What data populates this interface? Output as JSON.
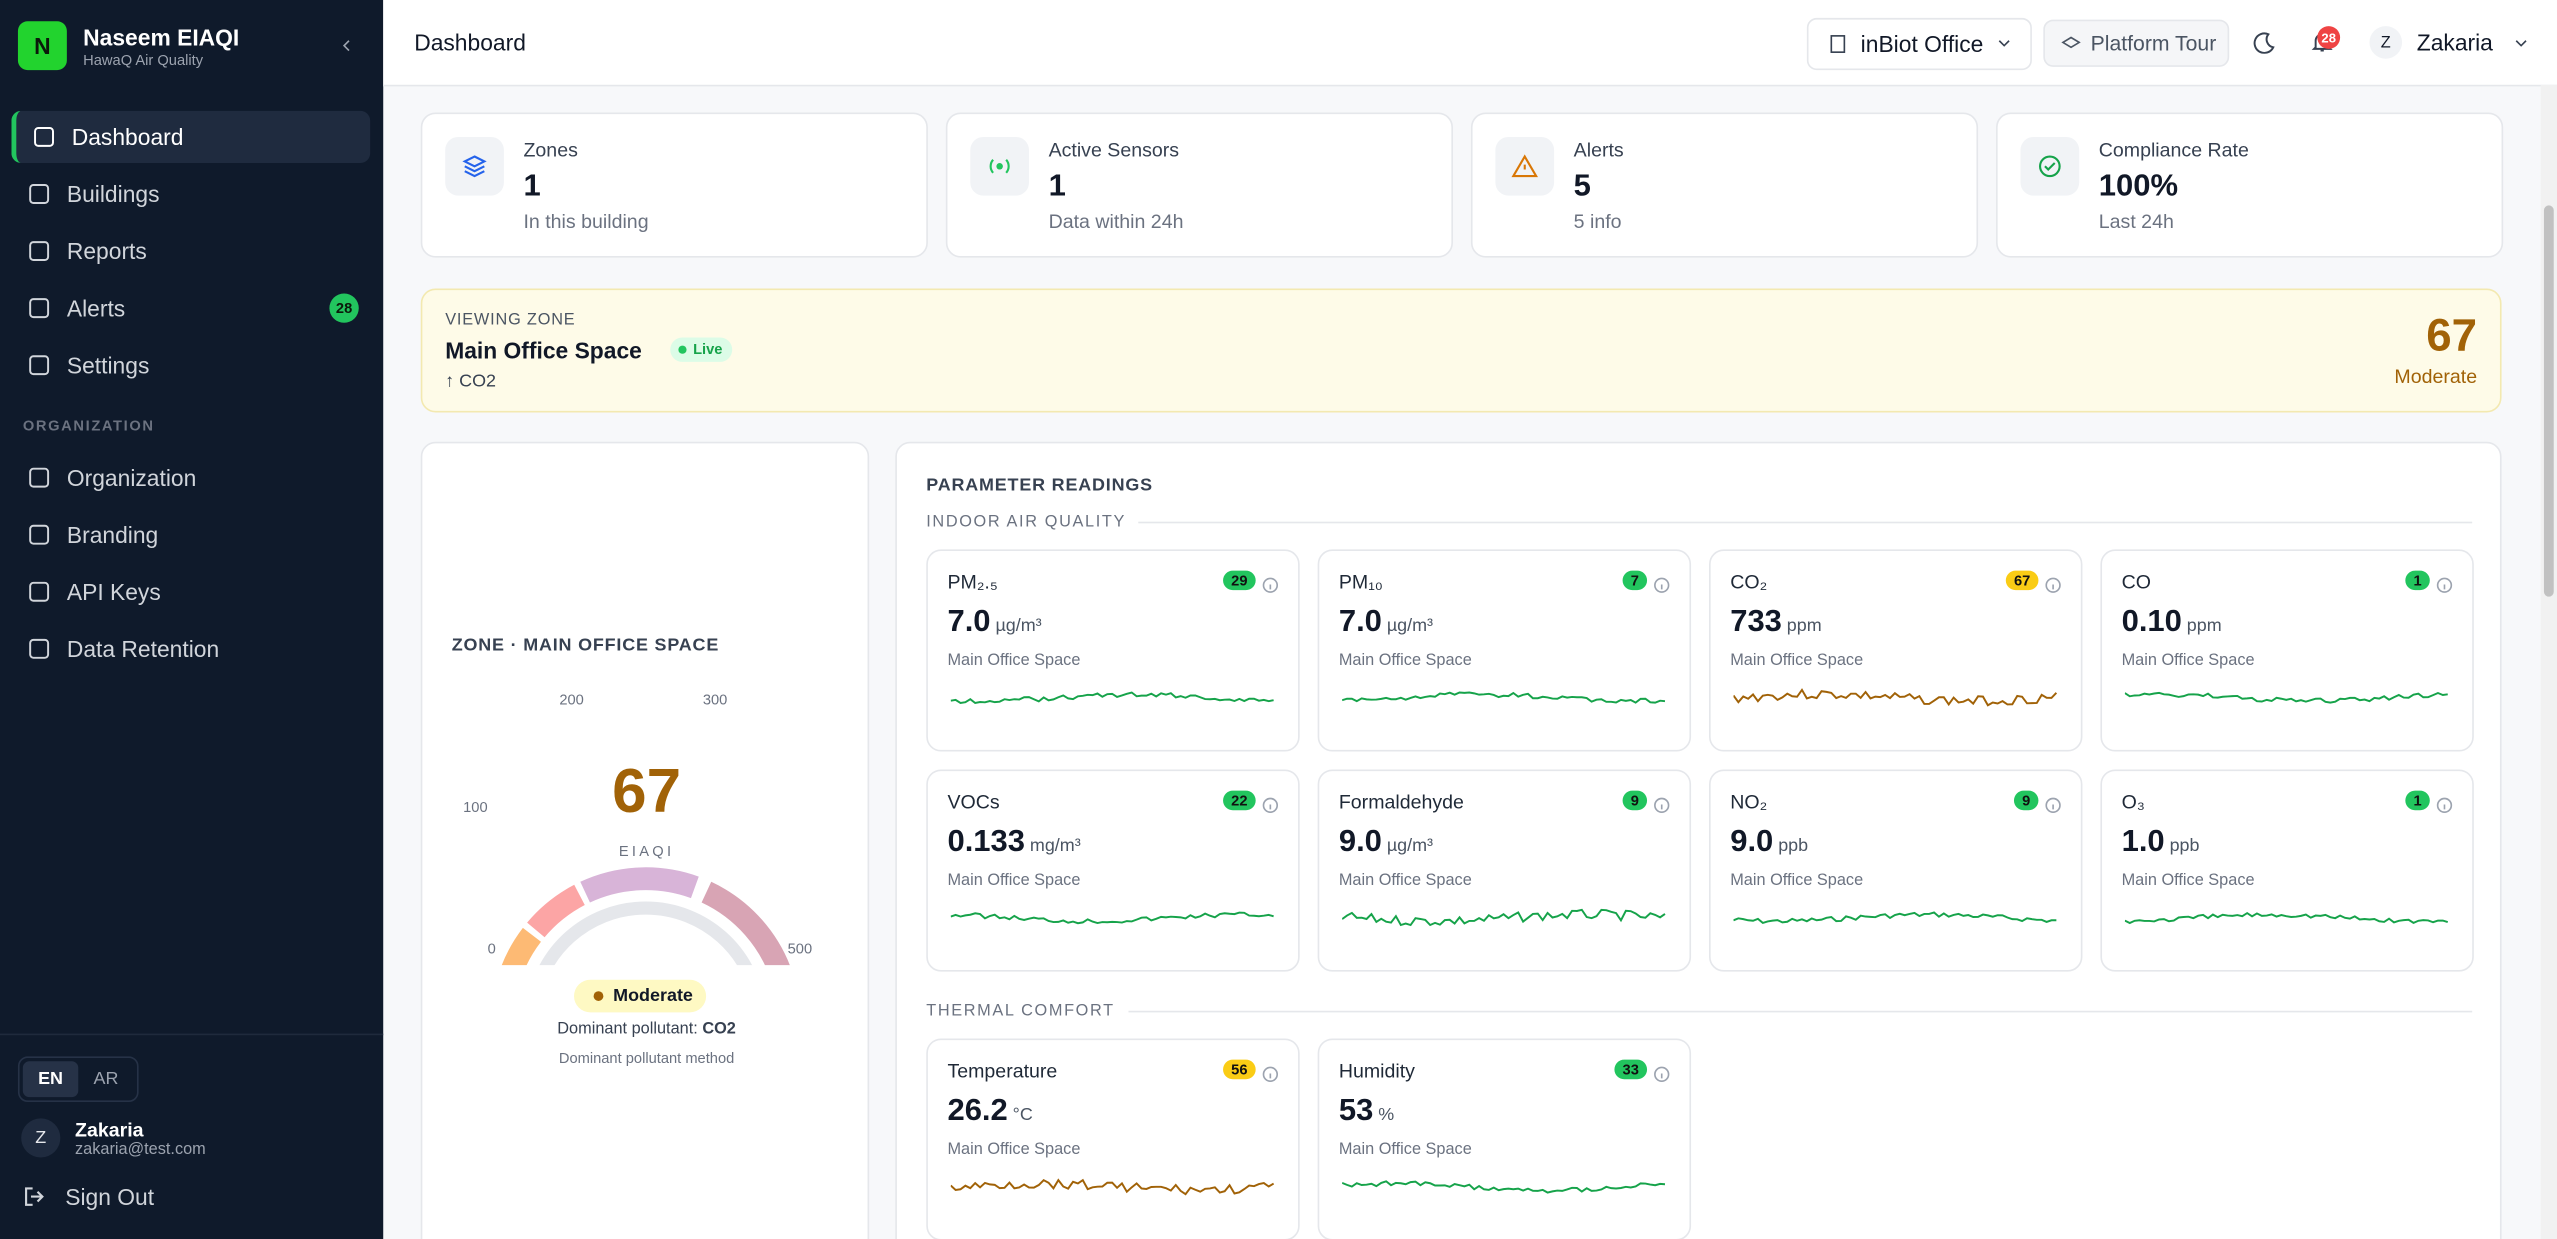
{
  "sidebar": {
    "logo": "N",
    "org_name": "Naseem EIAQI",
    "org_subtitle": "HawaQ Air Quality",
    "nav": [
      {
        "label": "Dashboard"
      },
      {
        "label": "Buildings"
      },
      {
        "label": "Reports"
      },
      {
        "label": "Alerts",
        "badge": "28"
      },
      {
        "label": "Settings"
      }
    ],
    "section": "ORGANIZATION",
    "org_nav": [
      "Organization",
      "Branding",
      "API Keys",
      "Data Retention"
    ],
    "languages": [
      "EN",
      "AR"
    ],
    "user": {
      "initial": "Z",
      "name": "Zakaria",
      "email": "zakaria@test.com"
    },
    "sign_out": "Sign Out"
  },
  "header": {
    "title": "Dashboard",
    "building": "inBiot Office",
    "tour": "Platform Tour",
    "notifications": "28",
    "user_initial": "Z",
    "user_name": "Zakaria"
  },
  "stats": [
    {
      "label": "Zones",
      "value": "1",
      "note": "In this building"
    },
    {
      "label": "Active Sensors",
      "value": "1",
      "note": "Data within 24h"
    },
    {
      "label": "Alerts",
      "value": "5",
      "note": "5 info"
    },
    {
      "label": "Compliance Rate",
      "value": "100%",
      "note": "Last 24h"
    }
  ],
  "zone_banner": {
    "eyebrow": "VIEWING ZONE",
    "name": "Main Office Space",
    "live": "Live",
    "pollutant": "↑ CO2",
    "score": "67",
    "level": "Moderate"
  },
  "gauge": {
    "title": "ZONE · MAIN OFFICE SPACE",
    "score": "67",
    "unit": "EIAQI",
    "ticks": [
      "0",
      "100",
      "200",
      "300",
      "500"
    ],
    "level": "Moderate",
    "dominant_label": "Dominant pollutant:",
    "dominant": "CO2",
    "method": "Dominant pollutant method"
  },
  "readings": {
    "title": "PARAMETER READINGS",
    "groups": [
      {
        "name": "INDOOR AIR QUALITY",
        "cards": [
          {
            "name": "PM₂.₅",
            "index": "29",
            "value": "7.0",
            "unit": "µg/m³",
            "location": "Main Office Space",
            "color": "#22c55e"
          },
          {
            "name": "PM₁₀",
            "index": "7",
            "value": "7.0",
            "unit": "µg/m³",
            "location": "Main Office Space",
            "color": "#22c55e"
          },
          {
            "name": "CO₂",
            "index": "67",
            "value": "733",
            "unit": "ppm",
            "location": "Main Office Space",
            "color": "#facc15"
          },
          {
            "name": "CO",
            "index": "1",
            "value": "0.10",
            "unit": "ppm",
            "location": "Main Office Space",
            "color": "#22c55e"
          },
          {
            "name": "VOCs",
            "index": "22",
            "value": "0.133",
            "unit": "mg/m³",
            "location": "Main Office Space",
            "color": "#22c55e"
          },
          {
            "name": "Formaldehyde",
            "index": "9",
            "value": "9.0",
            "unit": "µg/m³",
            "location": "Main Office Space",
            "color": "#22c55e"
          },
          {
            "name": "NO₂",
            "index": "9",
            "value": "9.0",
            "unit": "ppb",
            "location": "Main Office Space",
            "color": "#22c55e"
          },
          {
            "name": "O₃",
            "index": "1",
            "value": "1.0",
            "unit": "ppb",
            "location": "Main Office Space",
            "color": "#22c55e"
          }
        ]
      },
      {
        "name": "THERMAL COMFORT",
        "cards": [
          {
            "name": "Temperature",
            "index": "56",
            "value": "26.2",
            "unit": "°C",
            "location": "Main Office Space",
            "color": "#facc15"
          },
          {
            "name": "Humidity",
            "index": "33",
            "value": "53",
            "unit": "%",
            "location": "Main Office Space",
            "color": "#22c55e"
          }
        ]
      }
    ]
  }
}
